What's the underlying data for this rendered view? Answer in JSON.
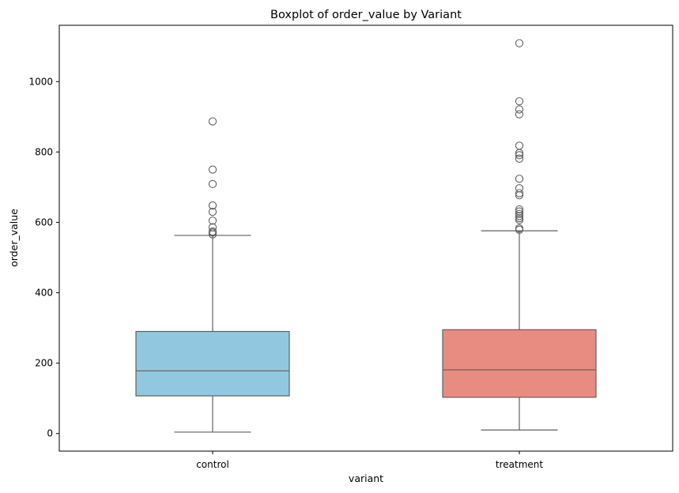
{
  "chart_data": {
    "type": "box",
    "title": "Boxplot of order_value by Variant",
    "xlabel": "variant",
    "ylabel": "order_value",
    "ylim": [
      -50,
      1160
    ],
    "yticks": [
      0,
      200,
      400,
      600,
      800,
      1000
    ],
    "grid": false,
    "categories": [
      "control",
      "treatment"
    ],
    "boxes": [
      {
        "category": "control",
        "color": "#92c8df",
        "whisker_low": 4,
        "q1": 107,
        "median": 178,
        "q3": 290,
        "whisker_high": 563,
        "outliers": [
          566,
          571,
          574,
          586,
          605,
          630,
          648,
          709,
          750,
          887
        ]
      },
      {
        "category": "treatment",
        "color": "#e88c82",
        "whisker_low": 10,
        "q1": 103,
        "median": 181,
        "q3": 295,
        "whisker_high": 576,
        "outliers": [
          579,
          583,
          607,
          612,
          618,
          624,
          631,
          637,
          677,
          683,
          697,
          724,
          781,
          791,
          797,
          818,
          907,
          921,
          944,
          1109
        ]
      }
    ],
    "line_color": "#606060",
    "outlier_edge_color": "#606060"
  }
}
